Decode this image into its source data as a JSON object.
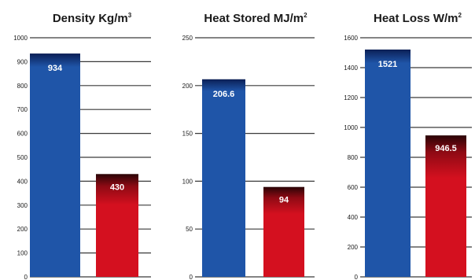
{
  "colors": {
    "blue_bar": "#1f55a8",
    "red_bar": "#d4101f",
    "gridline": "#3a3a3a",
    "text": "#1a1a1a",
    "label_on_bar": "#ffffff"
  },
  "chart_data": [
    {
      "type": "bar",
      "title": "Density Kg/m",
      "title_superscript": "3",
      "ylim": [
        0,
        1000
      ],
      "yticks": [
        "0",
        "100",
        "200",
        "300",
        "400",
        "500",
        "600",
        "700",
        "800",
        "900",
        "1000"
      ],
      "tick_step": 100,
      "grid": true,
      "values": [
        934,
        430
      ],
      "value_labels": [
        "934",
        "430"
      ]
    },
    {
      "type": "bar",
      "title": "Heat Stored MJ/m",
      "title_superscript": "2",
      "ylim": [
        0,
        250
      ],
      "yticks": [
        "0",
        "50",
        "100",
        "150",
        "200",
        "250"
      ],
      "tick_step": 50,
      "grid": true,
      "values": [
        206.6,
        94
      ],
      "value_labels": [
        "206.6",
        "94"
      ]
    },
    {
      "type": "bar",
      "title": "Heat Loss W/m",
      "title_superscript": "2",
      "ylim": [
        0,
        1600
      ],
      "yticks": [
        "0",
        "200",
        "400",
        "600",
        "800",
        "1000",
        "1200",
        "1400",
        "1600"
      ],
      "tick_step": 200,
      "grid": true,
      "values": [
        1521,
        946.5
      ],
      "value_labels": [
        "1521",
        "946.5"
      ]
    }
  ]
}
